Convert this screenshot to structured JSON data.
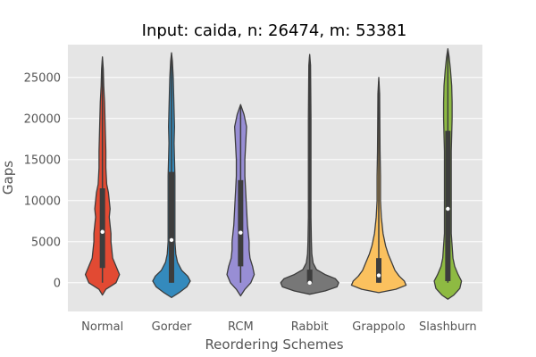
{
  "chart_data": {
    "type": "violin",
    "title": "Input: caida, n: 26474, m: 53381",
    "xlabel": "Reordering Schemes",
    "ylabel": "Gaps",
    "ylim": [
      -3500,
      29000
    ],
    "yticks": [
      0,
      5000,
      10000,
      15000,
      20000,
      25000
    ],
    "grid": true,
    "categories": [
      "Normal",
      "Gorder",
      "RCM",
      "Rabbit",
      "Grappolo",
      "Slashburn"
    ],
    "series": [
      {
        "category": "Normal",
        "color": "#e24a33",
        "min": 0,
        "q1": 1800,
        "median": 6200,
        "q3": 11500,
        "max": 27000,
        "density": [
          [
            -1500,
            0
          ],
          [
            -800,
            4
          ],
          [
            0,
            16
          ],
          [
            1000,
            20
          ],
          [
            2000,
            16
          ],
          [
            3000,
            12
          ],
          [
            4000,
            11
          ],
          [
            5000,
            10
          ],
          [
            6000,
            10
          ],
          [
            7000,
            9
          ],
          [
            8000,
            8
          ],
          [
            9000,
            9
          ],
          [
            10000,
            8
          ],
          [
            11000,
            7
          ],
          [
            12000,
            5
          ],
          [
            14000,
            4
          ],
          [
            16000,
            4
          ],
          [
            18000,
            3.5
          ],
          [
            20000,
            3
          ],
          [
            22000,
            2.5
          ],
          [
            24000,
            1.5
          ],
          [
            26000,
            1
          ],
          [
            27500,
            0
          ]
        ]
      },
      {
        "category": "Gorder",
        "color": "#348abd",
        "min": 0,
        "q1": 0,
        "median": 5200,
        "q3": 13500,
        "max": 27500,
        "density": [
          [
            -1800,
            0
          ],
          [
            -1200,
            9
          ],
          [
            -500,
            18
          ],
          [
            200,
            22
          ],
          [
            800,
            19
          ],
          [
            1500,
            12
          ],
          [
            2500,
            7
          ],
          [
            3500,
            5
          ],
          [
            5000,
            4
          ],
          [
            7000,
            4
          ],
          [
            9000,
            4
          ],
          [
            11000,
            4
          ],
          [
            13000,
            4
          ],
          [
            15000,
            3.5
          ],
          [
            17000,
            3
          ],
          [
            19000,
            3.5
          ],
          [
            21000,
            3
          ],
          [
            23000,
            2.5
          ],
          [
            25000,
            2
          ],
          [
            27000,
            1
          ],
          [
            28000,
            0
          ]
        ]
      },
      {
        "category": "RCM",
        "color": "#988ed5",
        "min": 0,
        "q1": 2000,
        "median": 6100,
        "q3": 12500,
        "max": 21500,
        "density": [
          [
            -1600,
            0
          ],
          [
            -800,
            5
          ],
          [
            0,
            12
          ],
          [
            1000,
            16
          ],
          [
            2000,
            14
          ],
          [
            3000,
            11
          ],
          [
            4000,
            10
          ],
          [
            5000,
            10
          ],
          [
            6000,
            9
          ],
          [
            7000,
            8
          ],
          [
            9000,
            7
          ],
          [
            11000,
            6
          ],
          [
            13000,
            5
          ],
          [
            15000,
            5
          ],
          [
            17000,
            6
          ],
          [
            19000,
            7
          ],
          [
            20500,
            4
          ],
          [
            21700,
            0
          ]
        ]
      },
      {
        "category": "Rabbit",
        "color": "#777777",
        "min": 0,
        "q1": 0,
        "median": 0,
        "q3": 1600,
        "max": 27500,
        "density": [
          [
            -1400,
            0
          ],
          [
            -1000,
            18
          ],
          [
            -500,
            32
          ],
          [
            0,
            34
          ],
          [
            500,
            30
          ],
          [
            1000,
            18
          ],
          [
            1600,
            8
          ],
          [
            2400,
            4
          ],
          [
            3500,
            2.5
          ],
          [
            5000,
            2
          ],
          [
            8000,
            1.5
          ],
          [
            12000,
            1.5
          ],
          [
            16000,
            1.5
          ],
          [
            20000,
            1.5
          ],
          [
            24000,
            1.2
          ],
          [
            26500,
            1
          ],
          [
            27800,
            0
          ]
        ]
      },
      {
        "category": "Grappolo",
        "color": "#fbc15e",
        "min": 0,
        "q1": 0,
        "median": 900,
        "q3": 3000,
        "max": 24500,
        "density": [
          [
            -1200,
            0
          ],
          [
            -800,
            20
          ],
          [
            -300,
            32
          ],
          [
            200,
            30
          ],
          [
            800,
            24
          ],
          [
            1500,
            19
          ],
          [
            2500,
            15
          ],
          [
            3500,
            11
          ],
          [
            4500,
            8
          ],
          [
            6000,
            5
          ],
          [
            8000,
            3
          ],
          [
            10000,
            2
          ],
          [
            13000,
            2
          ],
          [
            16000,
            1.5
          ],
          [
            20000,
            1.2
          ],
          [
            23000,
            1
          ],
          [
            25000,
            0
          ]
        ]
      },
      {
        "category": "Slashburn",
        "color": "#8eba42",
        "min": 0,
        "q1": 200,
        "median": 9000,
        "q3": 18500,
        "max": 28000,
        "density": [
          [
            -2000,
            0
          ],
          [
            -1500,
            7
          ],
          [
            -700,
            14
          ],
          [
            200,
            16
          ],
          [
            1000,
            12
          ],
          [
            2000,
            8
          ],
          [
            3000,
            6
          ],
          [
            4500,
            5
          ],
          [
            6000,
            4
          ],
          [
            8000,
            4
          ],
          [
            10000,
            4
          ],
          [
            12000,
            4
          ],
          [
            14000,
            4
          ],
          [
            16000,
            4
          ],
          [
            18000,
            4.5
          ],
          [
            20000,
            5
          ],
          [
            22000,
            5
          ],
          [
            24000,
            4.5
          ],
          [
            26000,
            3
          ],
          [
            27500,
            1.5
          ],
          [
            28500,
            0
          ]
        ]
      }
    ]
  }
}
